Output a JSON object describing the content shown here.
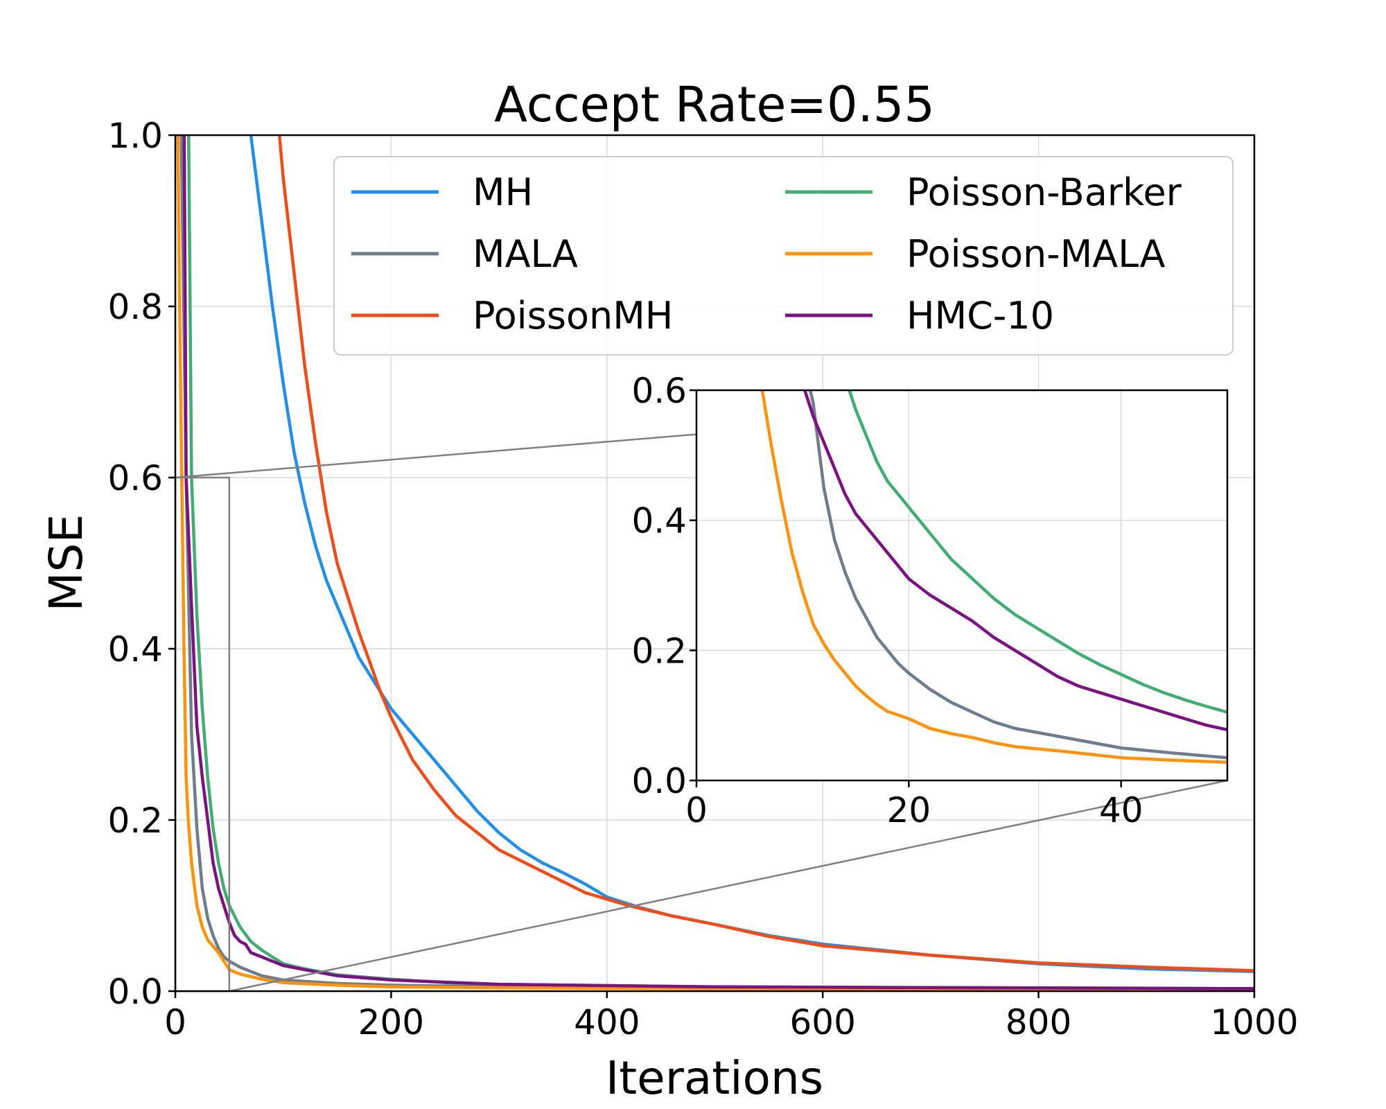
{
  "chart_data": {
    "type": "line",
    "title": "Accept Rate=0.55",
    "xlabel": "Iterations",
    "ylabel": "MSE",
    "xlim": [
      0,
      1000
    ],
    "ylim": [
      0,
      1.0
    ],
    "xticks": [
      "0",
      "200",
      "400",
      "600",
      "800",
      "1000"
    ],
    "yticks": [
      "0.0",
      "0.2",
      "0.4",
      "0.6",
      "0.8",
      "1.0"
    ],
    "grid": true,
    "legend_position": "upper-right",
    "series": [
      {
        "name": "MH",
        "color": "#1f8fef",
        "points": [
          [
            65,
            1.05
          ],
          [
            80,
            0.9
          ],
          [
            90,
            0.8
          ],
          [
            100,
            0.71
          ],
          [
            110,
            0.63
          ],
          [
            120,
            0.57
          ],
          [
            130,
            0.52
          ],
          [
            140,
            0.48
          ],
          [
            150,
            0.45
          ],
          [
            160,
            0.42
          ],
          [
            170,
            0.39
          ],
          [
            180,
            0.37
          ],
          [
            190,
            0.35
          ],
          [
            200,
            0.33
          ],
          [
            220,
            0.3
          ],
          [
            240,
            0.27
          ],
          [
            260,
            0.24
          ],
          [
            280,
            0.21
          ],
          [
            300,
            0.185
          ],
          [
            320,
            0.165
          ],
          [
            340,
            0.15
          ],
          [
            360,
            0.138
          ],
          [
            380,
            0.125
          ],
          [
            400,
            0.11
          ],
          [
            430,
            0.098
          ],
          [
            460,
            0.088
          ],
          [
            500,
            0.078
          ],
          [
            550,
            0.065
          ],
          [
            600,
            0.055
          ],
          [
            700,
            0.042
          ],
          [
            800,
            0.032
          ],
          [
            900,
            0.026
          ],
          [
            1000,
            0.023
          ]
        ]
      },
      {
        "name": "MALA",
        "color": "#6e7d8e",
        "points": [
          [
            5,
            1.05
          ],
          [
            10,
            0.6
          ],
          [
            15,
            0.3
          ],
          [
            20,
            0.19
          ],
          [
            25,
            0.12
          ],
          [
            30,
            0.085
          ],
          [
            35,
            0.065
          ],
          [
            40,
            0.05
          ],
          [
            45,
            0.04
          ],
          [
            50,
            0.035
          ],
          [
            60,
            0.028
          ],
          [
            80,
            0.018
          ],
          [
            100,
            0.013
          ],
          [
            150,
            0.009
          ],
          [
            200,
            0.007
          ],
          [
            300,
            0.005
          ],
          [
            500,
            0.003
          ],
          [
            1000,
            0.002
          ]
        ]
      },
      {
        "name": "PoissonMH",
        "color": "#f44b16",
        "points": [
          [
            93,
            1.05
          ],
          [
            100,
            0.95
          ],
          [
            110,
            0.84
          ],
          [
            120,
            0.73
          ],
          [
            130,
            0.64
          ],
          [
            140,
            0.56
          ],
          [
            150,
            0.5
          ],
          [
            160,
            0.46
          ],
          [
            170,
            0.42
          ],
          [
            180,
            0.385
          ],
          [
            190,
            0.35
          ],
          [
            200,
            0.32
          ],
          [
            220,
            0.27
          ],
          [
            240,
            0.235
          ],
          [
            260,
            0.205
          ],
          [
            280,
            0.185
          ],
          [
            300,
            0.165
          ],
          [
            340,
            0.14
          ],
          [
            380,
            0.115
          ],
          [
            420,
            0.1
          ],
          [
            460,
            0.088
          ],
          [
            500,
            0.078
          ],
          [
            550,
            0.064
          ],
          [
            600,
            0.053
          ],
          [
            700,
            0.042
          ],
          [
            800,
            0.033
          ],
          [
            900,
            0.028
          ],
          [
            1000,
            0.024
          ]
        ]
      },
      {
        "name": "Poisson-Barker",
        "color": "#3fae73",
        "points": [
          [
            12,
            1.05
          ],
          [
            15,
            0.6
          ],
          [
            20,
            0.44
          ],
          [
            25,
            0.33
          ],
          [
            30,
            0.25
          ],
          [
            35,
            0.19
          ],
          [
            40,
            0.15
          ],
          [
            45,
            0.12
          ],
          [
            50,
            0.1
          ],
          [
            60,
            0.075
          ],
          [
            70,
            0.058
          ],
          [
            80,
            0.048
          ],
          [
            90,
            0.04
          ],
          [
            100,
            0.032
          ],
          [
            120,
            0.026
          ],
          [
            150,
            0.019
          ],
          [
            200,
            0.014
          ],
          [
            250,
            0.01
          ],
          [
            300,
            0.008
          ],
          [
            500,
            0.005
          ],
          [
            1000,
            0.003
          ]
        ]
      },
      {
        "name": "Poisson-MALA",
        "color": "#ff9208",
        "points": [
          [
            2,
            1.05
          ],
          [
            4,
            0.8
          ],
          [
            6,
            0.6
          ],
          [
            8,
            0.4
          ],
          [
            10,
            0.25
          ],
          [
            12,
            0.2
          ],
          [
            15,
            0.15
          ],
          [
            20,
            0.1
          ],
          [
            25,
            0.075
          ],
          [
            30,
            0.06
          ],
          [
            40,
            0.045
          ],
          [
            50,
            0.025
          ],
          [
            60,
            0.02
          ],
          [
            80,
            0.014
          ],
          [
            100,
            0.01
          ],
          [
            150,
            0.007
          ],
          [
            200,
            0.005
          ],
          [
            300,
            0.004
          ],
          [
            500,
            0.003
          ],
          [
            1000,
            0.002
          ]
        ]
      },
      {
        "name": "HMC-10",
        "color": "#7b1183",
        "points": [
          [
            8,
            1.05
          ],
          [
            10,
            0.6
          ],
          [
            15,
            0.45
          ],
          [
            20,
            0.31
          ],
          [
            25,
            0.25
          ],
          [
            30,
            0.2
          ],
          [
            35,
            0.15
          ],
          [
            40,
            0.12
          ],
          [
            45,
            0.1
          ],
          [
            50,
            0.08
          ],
          [
            55,
            0.065
          ],
          [
            60,
            0.058
          ],
          [
            65,
            0.055
          ],
          [
            70,
            0.045
          ],
          [
            80,
            0.04
          ],
          [
            90,
            0.035
          ],
          [
            100,
            0.03
          ],
          [
            120,
            0.025
          ],
          [
            150,
            0.018
          ],
          [
            200,
            0.013
          ],
          [
            300,
            0.008
          ],
          [
            500,
            0.005
          ],
          [
            1000,
            0.003
          ]
        ]
      }
    ],
    "inset": {
      "xlim": [
        0,
        50
      ],
      "ylim": [
        0,
        0.6
      ],
      "xticks": [
        "0",
        "20",
        "40"
      ],
      "yticks": [
        "0.0",
        "0.2",
        "0.4",
        "0.6"
      ],
      "series": [
        {
          "name": "MALA",
          "points": [
            [
              10,
              0.65
            ],
            [
              11,
              0.58
            ],
            [
              12,
              0.45
            ],
            [
              13,
              0.37
            ],
            [
              14,
              0.32
            ],
            [
              15,
              0.28
            ],
            [
              16,
              0.25
            ],
            [
              17,
              0.22
            ],
            [
              18,
              0.2
            ],
            [
              19,
              0.18
            ],
            [
              20,
              0.165
            ],
            [
              22,
              0.14
            ],
            [
              24,
              0.12
            ],
            [
              26,
              0.105
            ],
            [
              28,
              0.09
            ],
            [
              30,
              0.08
            ],
            [
              35,
              0.065
            ],
            [
              40,
              0.05
            ],
            [
              45,
              0.042
            ],
            [
              50,
              0.035
            ]
          ]
        },
        {
          "name": "Poisson-Barker",
          "points": [
            [
              14,
              0.62
            ],
            [
              15,
              0.57
            ],
            [
              16,
              0.53
            ],
            [
              17,
              0.49
            ],
            [
              18,
              0.46
            ],
            [
              19,
              0.44
            ],
            [
              20,
              0.42
            ],
            [
              22,
              0.38
            ],
            [
              24,
              0.34
            ],
            [
              26,
              0.31
            ],
            [
              28,
              0.28
            ],
            [
              30,
              0.255
            ],
            [
              32,
              0.235
            ],
            [
              34,
              0.215
            ],
            [
              36,
              0.195
            ],
            [
              38,
              0.178
            ],
            [
              40,
              0.163
            ],
            [
              42,
              0.148
            ],
            [
              44,
              0.135
            ],
            [
              46,
              0.124
            ],
            [
              48,
              0.114
            ],
            [
              50,
              0.105
            ]
          ]
        },
        {
          "name": "Poisson-MALA",
          "points": [
            [
              6,
              0.62
            ],
            [
              7,
              0.52
            ],
            [
              8,
              0.43
            ],
            [
              9,
              0.35
            ],
            [
              10,
              0.29
            ],
            [
              11,
              0.24
            ],
            [
              12,
              0.21
            ],
            [
              13,
              0.185
            ],
            [
              14,
              0.165
            ],
            [
              15,
              0.145
            ],
            [
              16,
              0.13
            ],
            [
              17,
              0.117
            ],
            [
              18,
              0.106
            ],
            [
              20,
              0.095
            ],
            [
              22,
              0.08
            ],
            [
              24,
              0.072
            ],
            [
              26,
              0.066
            ],
            [
              28,
              0.058
            ],
            [
              30,
              0.052
            ],
            [
              35,
              0.044
            ],
            [
              40,
              0.035
            ],
            [
              45,
              0.031
            ],
            [
              50,
              0.028
            ]
          ]
        },
        {
          "name": "HMC-10",
          "points": [
            [
              10,
              0.61
            ],
            [
              11,
              0.56
            ],
            [
              12,
              0.52
            ],
            [
              13,
              0.48
            ],
            [
              14,
              0.44
            ],
            [
              15,
              0.41
            ],
            [
              16,
              0.39
            ],
            [
              17,
              0.37
            ],
            [
              18,
              0.35
            ],
            [
              19,
              0.33
            ],
            [
              20,
              0.31
            ],
            [
              22,
              0.285
            ],
            [
              24,
              0.265
            ],
            [
              26,
              0.245
            ],
            [
              28,
              0.22
            ],
            [
              30,
              0.2
            ],
            [
              32,
              0.18
            ],
            [
              34,
              0.16
            ],
            [
              36,
              0.145
            ],
            [
              38,
              0.135
            ],
            [
              40,
              0.125
            ],
            [
              42,
              0.115
            ],
            [
              44,
              0.105
            ],
            [
              46,
              0.095
            ],
            [
              48,
              0.085
            ],
            [
              50,
              0.078
            ]
          ]
        }
      ]
    }
  }
}
